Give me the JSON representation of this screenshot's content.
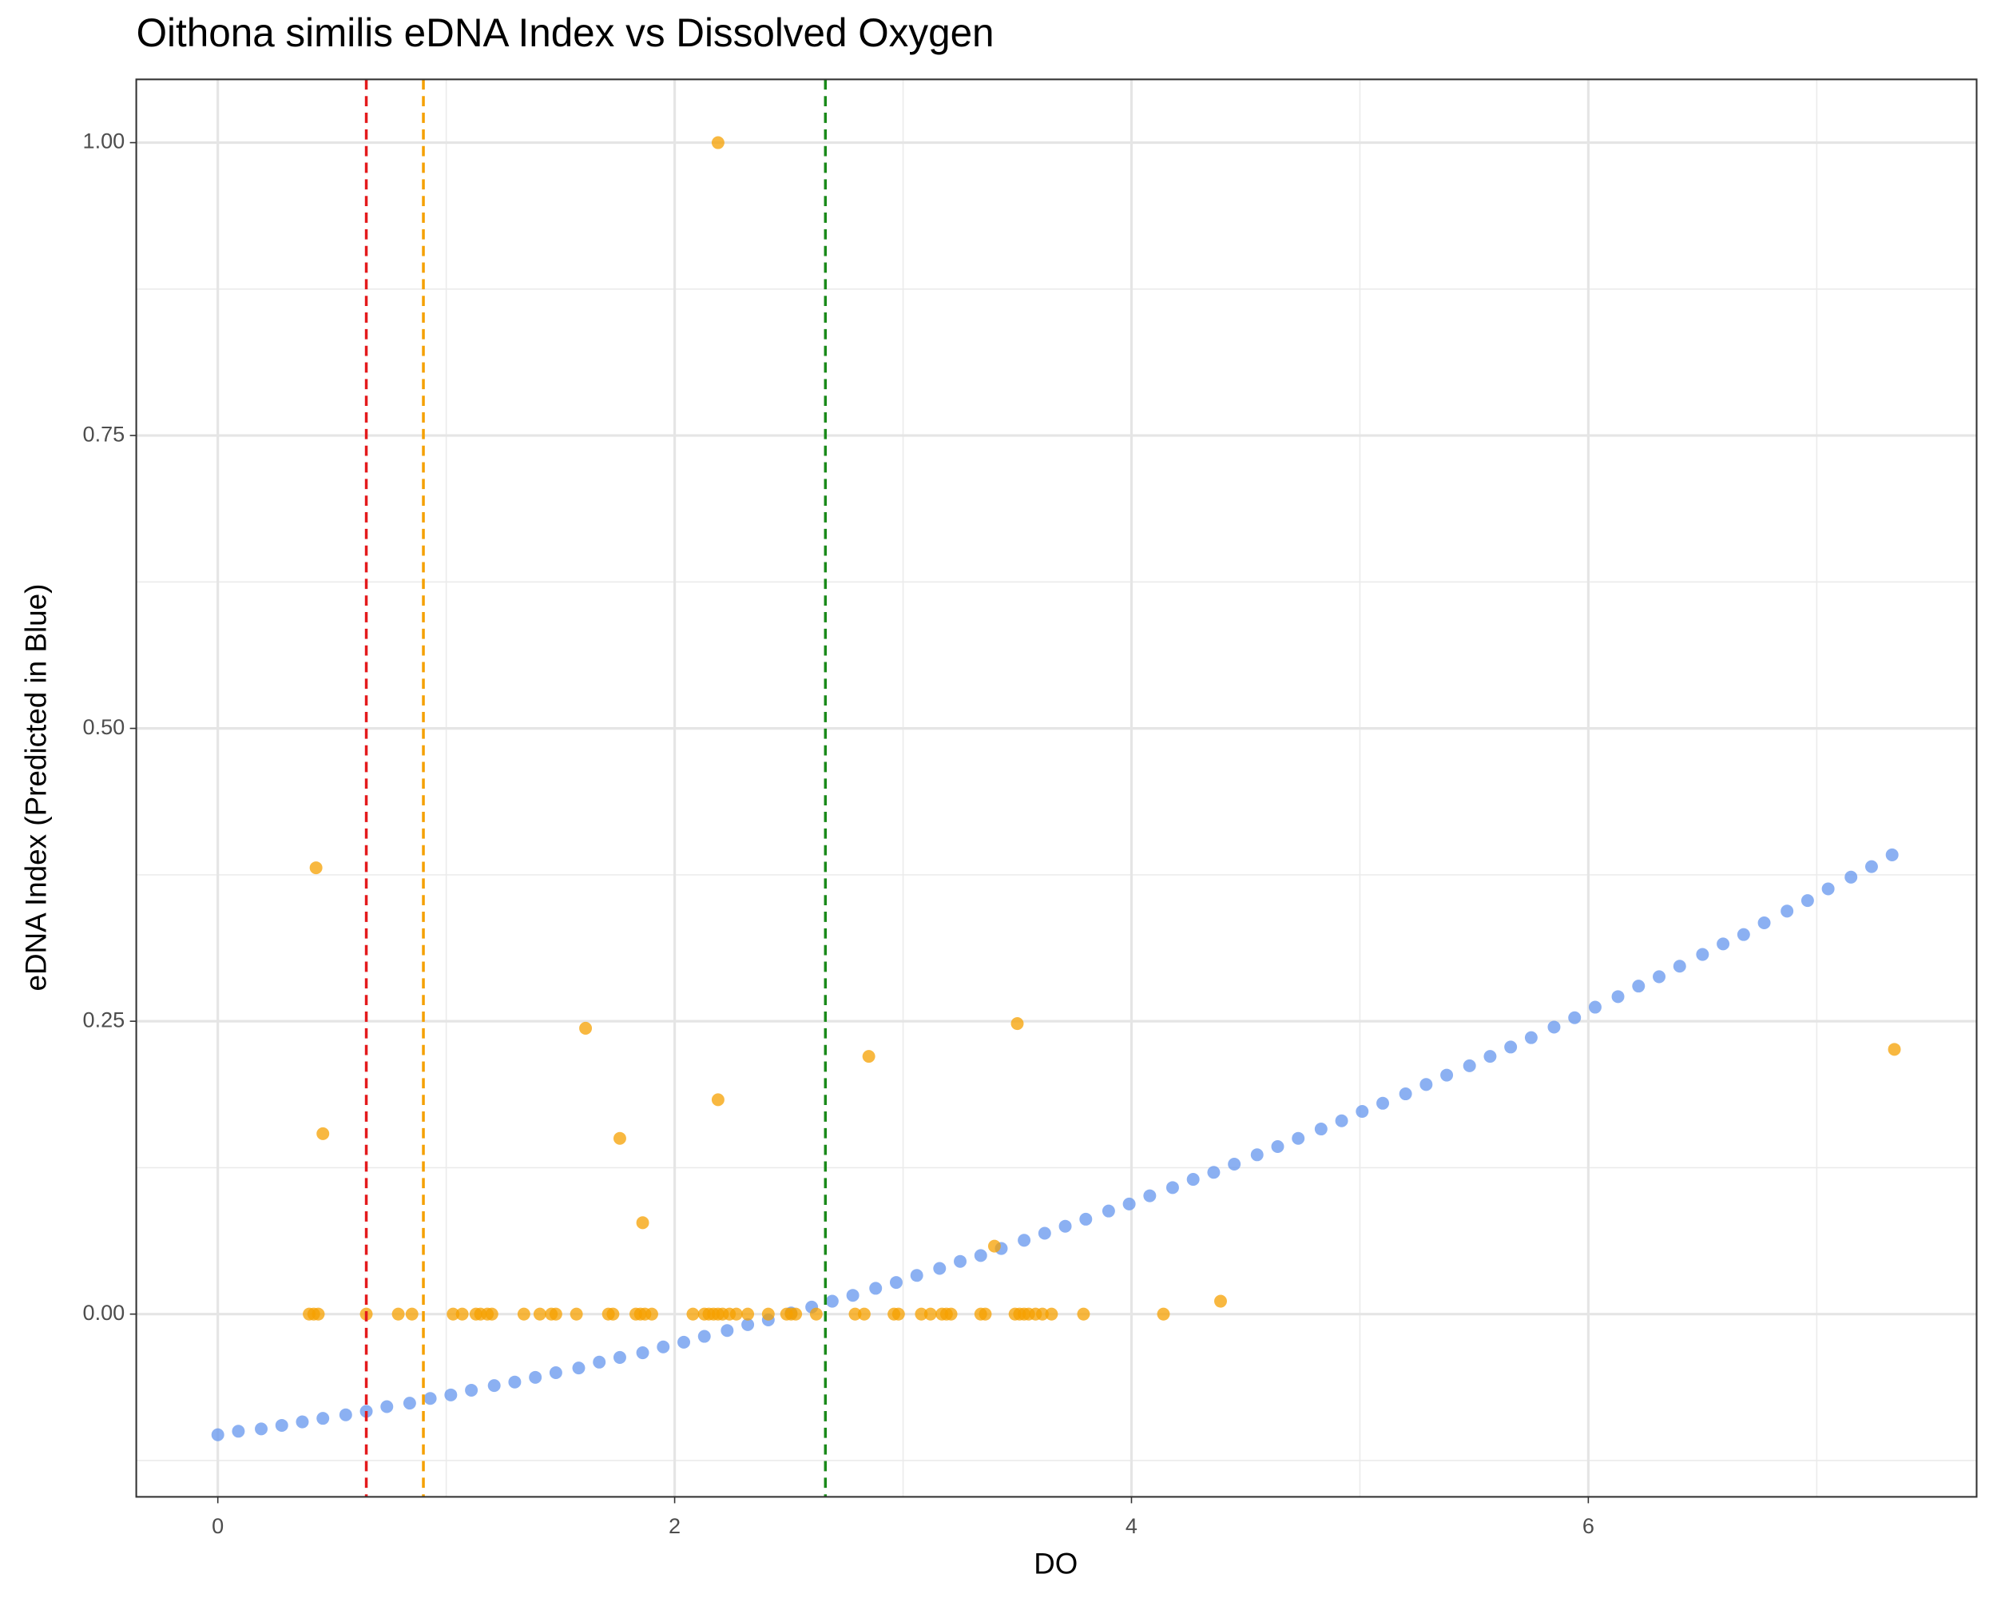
{
  "chart_data": {
    "type": "scatter",
    "title": "Oithona similis eDNA Index vs Dissolved Oxygen",
    "x_label": "DO",
    "y_label": "eDNA Index (Predicted in Blue)",
    "xlim": [
      -0.357,
      7.7
    ],
    "ylim": [
      -0.156,
      1.054
    ],
    "xticks": [
      0,
      2,
      4,
      6
    ],
    "yticks": [
      {
        "value": 0,
        "label": "0.00"
      },
      {
        "value": 0.25,
        "label": "0.25"
      },
      {
        "value": 0.5,
        "label": "0.50"
      },
      {
        "value": 0.75,
        "label": "0.75"
      },
      {
        "value": 1,
        "label": "1.00"
      }
    ],
    "x_minor_grid": [
      1,
      3,
      5,
      7
    ],
    "y_minor_grid": [
      -0.125,
      0.125,
      0.375,
      0.625,
      0.875
    ],
    "grid": true,
    "vlines": [
      {
        "x": 0.65,
        "color": "#e41a1c"
      },
      {
        "x": 0.9,
        "color": "#f5a000"
      },
      {
        "x": 2.66,
        "color": "#1a8a1a"
      }
    ],
    "series": [
      {
        "color": "#6495ed",
        "x": [
          0.0,
          0.09,
          0.19,
          0.28,
          0.37,
          0.46,
          0.56,
          0.65,
          0.74,
          0.84,
          0.93,
          1.02,
          1.11,
          1.21,
          1.3,
          1.39,
          1.48,
          1.58,
          1.67,
          1.76,
          1.86,
          1.95,
          2.04,
          2.13,
          2.23,
          2.32,
          2.41,
          2.51,
          2.6,
          2.69,
          2.78,
          2.88,
          2.97,
          3.06,
          3.16,
          3.25,
          3.34,
          3.43,
          3.53,
          3.62,
          3.71,
          3.8,
          3.9,
          3.99,
          4.08,
          4.18,
          4.27,
          4.36,
          4.45,
          4.55,
          4.64,
          4.73,
          4.83,
          4.92,
          5.01,
          5.1,
          5.2,
          5.29,
          5.38,
          5.48,
          5.57,
          5.66,
          5.75,
          5.85,
          5.94,
          6.03,
          6.13,
          6.22,
          6.31,
          6.4,
          6.5,
          6.59,
          6.68,
          6.77,
          6.87,
          6.96,
          7.05,
          7.15,
          7.24,
          7.33
        ],
        "values": [
          -0.103,
          -0.1,
          -0.098,
          -0.095,
          -0.092,
          -0.089,
          -0.086,
          -0.083,
          -0.079,
          -0.076,
          -0.072,
          -0.069,
          -0.065,
          -0.061,
          -0.058,
          -0.054,
          -0.05,
          -0.046,
          -0.041,
          -0.037,
          -0.033,
          -0.028,
          -0.024,
          -0.019,
          -0.014,
          -0.009,
          -0.005,
          0.001,
          0.006,
          0.011,
          0.016,
          0.022,
          0.027,
          0.033,
          0.039,
          0.045,
          0.05,
          0.056,
          0.063,
          0.069,
          0.075,
          0.081,
          0.088,
          0.094,
          0.101,
          0.108,
          0.115,
          0.121,
          0.128,
          0.136,
          0.143,
          0.15,
          0.158,
          0.165,
          0.173,
          0.18,
          0.188,
          0.196,
          0.204,
          0.212,
          0.22,
          0.228,
          0.236,
          0.245,
          0.253,
          0.262,
          0.271,
          0.28,
          0.288,
          0.297,
          0.307,
          0.316,
          0.324,
          0.334,
          0.344,
          0.353,
          0.363,
          0.373,
          0.382,
          0.392
        ]
      },
      {
        "color": "#f5a000",
        "x": [
          0.43,
          0.46,
          1.61,
          1.76,
          1.86,
          2.19,
          2.19,
          2.85,
          3.5,
          3.4,
          4.39,
          7.34,
          0.4,
          0.42,
          0.44,
          0.65,
          0.79,
          0.85,
          1.03,
          1.07,
          1.13,
          1.15,
          1.18,
          1.2,
          1.34,
          1.41,
          1.46,
          1.48,
          1.57,
          1.71,
          1.73,
          1.83,
          1.85,
          1.87,
          1.9,
          2.08,
          2.13,
          2.15,
          2.17,
          2.19,
          2.21,
          2.24,
          2.27,
          2.32,
          2.41,
          2.49,
          2.51,
          2.53,
          2.62,
          2.79,
          2.83,
          2.96,
          2.98,
          3.08,
          3.12,
          3.17,
          3.19,
          3.21,
          3.34,
          3.36,
          3.49,
          3.51,
          3.53,
          3.55,
          3.58,
          3.61,
          3.65,
          3.79,
          4.14
        ],
        "values": [
          0.381,
          0.154,
          0.244,
          0.15,
          0.078,
          1.0,
          0.183,
          0.22,
          0.248,
          0.058,
          0.011,
          0.226,
          0,
          0,
          0,
          0,
          0,
          0,
          0,
          0,
          0,
          0,
          0,
          0,
          0,
          0,
          0,
          0,
          0,
          0,
          0,
          0,
          0,
          0,
          0,
          0,
          0,
          0,
          0,
          0,
          0,
          0,
          0,
          0,
          0,
          0,
          0,
          0,
          0,
          0,
          0,
          0,
          0,
          0,
          0,
          0,
          0,
          0,
          0,
          0,
          0,
          0,
          0,
          0,
          0,
          0,
          0,
          0,
          0
        ]
      }
    ]
  }
}
